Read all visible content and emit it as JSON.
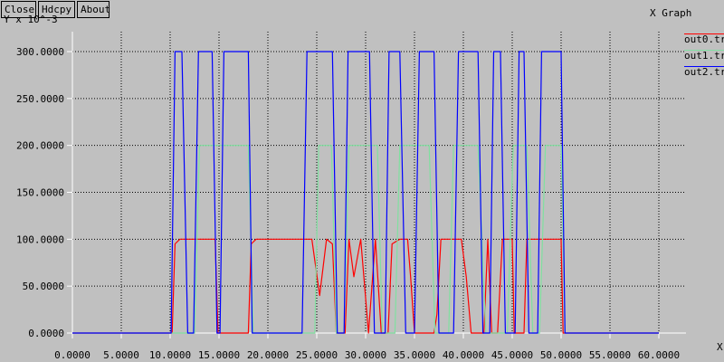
{
  "toolbar": {
    "close_label": "Close",
    "hardcopy_label": "Hdcpy",
    "about_label": "About"
  },
  "window_title": "X Graph",
  "colors": {
    "background": "#c0c0c0",
    "axis": "#ffffff",
    "grid": "#000000"
  },
  "chart_data": {
    "type": "line",
    "title": "X Graph",
    "xlabel": "X",
    "ylabel": "Y x 10^-3",
    "xlim": [
      0,
      60
    ],
    "ylim": [
      0,
      300
    ],
    "grid": true,
    "legend_position": "top-right",
    "x_ticks": [
      "0.0000",
      "5.0000",
      "10.0000",
      "15.0000",
      "20.0000",
      "25.0000",
      "30.0000",
      "35.0000",
      "40.0000",
      "45.0000",
      "50.0000",
      "55.0000",
      "60.0000"
    ],
    "y_ticks": [
      "0.0000",
      "50.0000",
      "100.0000",
      "150.0000",
      "200.0000",
      "250.0000",
      "300.0000"
    ],
    "series": [
      {
        "name": "out0.tr",
        "color": "#ff0000",
        "points": [
          [
            0,
            0
          ],
          [
            10.2,
            0
          ],
          [
            10.5,
            95
          ],
          [
            11,
            100
          ],
          [
            14.6,
            100
          ],
          [
            14.9,
            0
          ],
          [
            18,
            0
          ],
          [
            18.3,
            95
          ],
          [
            18.8,
            100
          ],
          [
            23,
            100
          ],
          [
            24.5,
            100
          ],
          [
            25.3,
            40
          ],
          [
            26,
            100
          ],
          [
            26.6,
            95
          ],
          [
            27,
            0
          ],
          [
            27.9,
            0
          ],
          [
            28.3,
            100
          ],
          [
            28.8,
            60
          ],
          [
            29.5,
            100
          ],
          [
            30.3,
            0
          ],
          [
            31,
            100
          ],
          [
            31.6,
            0
          ],
          [
            32.3,
            0
          ],
          [
            32.7,
            95
          ],
          [
            33.5,
            100
          ],
          [
            34.3,
            100
          ],
          [
            34.6,
            60
          ],
          [
            35,
            0
          ],
          [
            37,
            0
          ],
          [
            37.3,
            20
          ],
          [
            37.7,
            100
          ],
          [
            39.8,
            100
          ],
          [
            40.3,
            60
          ],
          [
            40.8,
            0
          ],
          [
            42.1,
            0
          ],
          [
            42.5,
            100
          ],
          [
            42.9,
            0
          ],
          [
            43.5,
            0
          ],
          [
            44,
            100
          ],
          [
            45,
            100
          ],
          [
            45.2,
            0
          ],
          [
            46.2,
            0
          ],
          [
            46.5,
            100
          ],
          [
            50,
            100
          ],
          [
            50.2,
            0
          ],
          [
            60,
            0
          ]
        ]
      },
      {
        "name": "out1.tr",
        "color": "#80e0a0",
        "points": [
          [
            0,
            0
          ],
          [
            12.5,
            0
          ],
          [
            13,
            200
          ],
          [
            18,
            200
          ],
          [
            18.5,
            0
          ],
          [
            24.8,
            0
          ],
          [
            25.2,
            200
          ],
          [
            26.5,
            200
          ],
          [
            27,
            0
          ],
          [
            27.8,
            0
          ],
          [
            28.3,
            200
          ],
          [
            31.2,
            200
          ],
          [
            31.7,
            0
          ],
          [
            33,
            0
          ],
          [
            33.5,
            200
          ],
          [
            36.5,
            200
          ],
          [
            37.1,
            0
          ],
          [
            38.5,
            0
          ],
          [
            39,
            200
          ],
          [
            41.5,
            200
          ],
          [
            42.3,
            0
          ],
          [
            44.5,
            0
          ],
          [
            45.1,
            200
          ],
          [
            46.5,
            200
          ],
          [
            47.1,
            0
          ],
          [
            47.8,
            0
          ],
          [
            48.4,
            200
          ],
          [
            50,
            200
          ],
          [
            50.4,
            0
          ],
          [
            60,
            0
          ]
        ]
      },
      {
        "name": "out2.tr",
        "color": "#0000ff",
        "points": [
          [
            0,
            0
          ],
          [
            10.1,
            0
          ],
          [
            10.5,
            300
          ],
          [
            11.2,
            300
          ],
          [
            11.8,
            0
          ],
          [
            12.4,
            0
          ],
          [
            12.9,
            300
          ],
          [
            14.3,
            300
          ],
          [
            14.8,
            0
          ],
          [
            15.1,
            0
          ],
          [
            15.5,
            300
          ],
          [
            18,
            300
          ],
          [
            18.4,
            0
          ],
          [
            23.5,
            0
          ],
          [
            24,
            300
          ],
          [
            26.6,
            300
          ],
          [
            27.1,
            0
          ],
          [
            27.8,
            0
          ],
          [
            28.2,
            300
          ],
          [
            30.4,
            300
          ],
          [
            30.9,
            0
          ],
          [
            32,
            0
          ],
          [
            32.4,
            300
          ],
          [
            33.5,
            300
          ],
          [
            34.1,
            0
          ],
          [
            35,
            0
          ],
          [
            35.5,
            300
          ],
          [
            37,
            300
          ],
          [
            37.5,
            0
          ],
          [
            39,
            0
          ],
          [
            39.5,
            300
          ],
          [
            41.5,
            300
          ],
          [
            42,
            0
          ],
          [
            42.7,
            0
          ],
          [
            43.1,
            300
          ],
          [
            43.8,
            300
          ],
          [
            44.3,
            0
          ],
          [
            45.3,
            0
          ],
          [
            45.7,
            300
          ],
          [
            46.2,
            300
          ],
          [
            46.7,
            0
          ],
          [
            47.6,
            0
          ],
          [
            48,
            300
          ],
          [
            50,
            300
          ],
          [
            50.4,
            0
          ],
          [
            60,
            0
          ]
        ]
      }
    ]
  }
}
